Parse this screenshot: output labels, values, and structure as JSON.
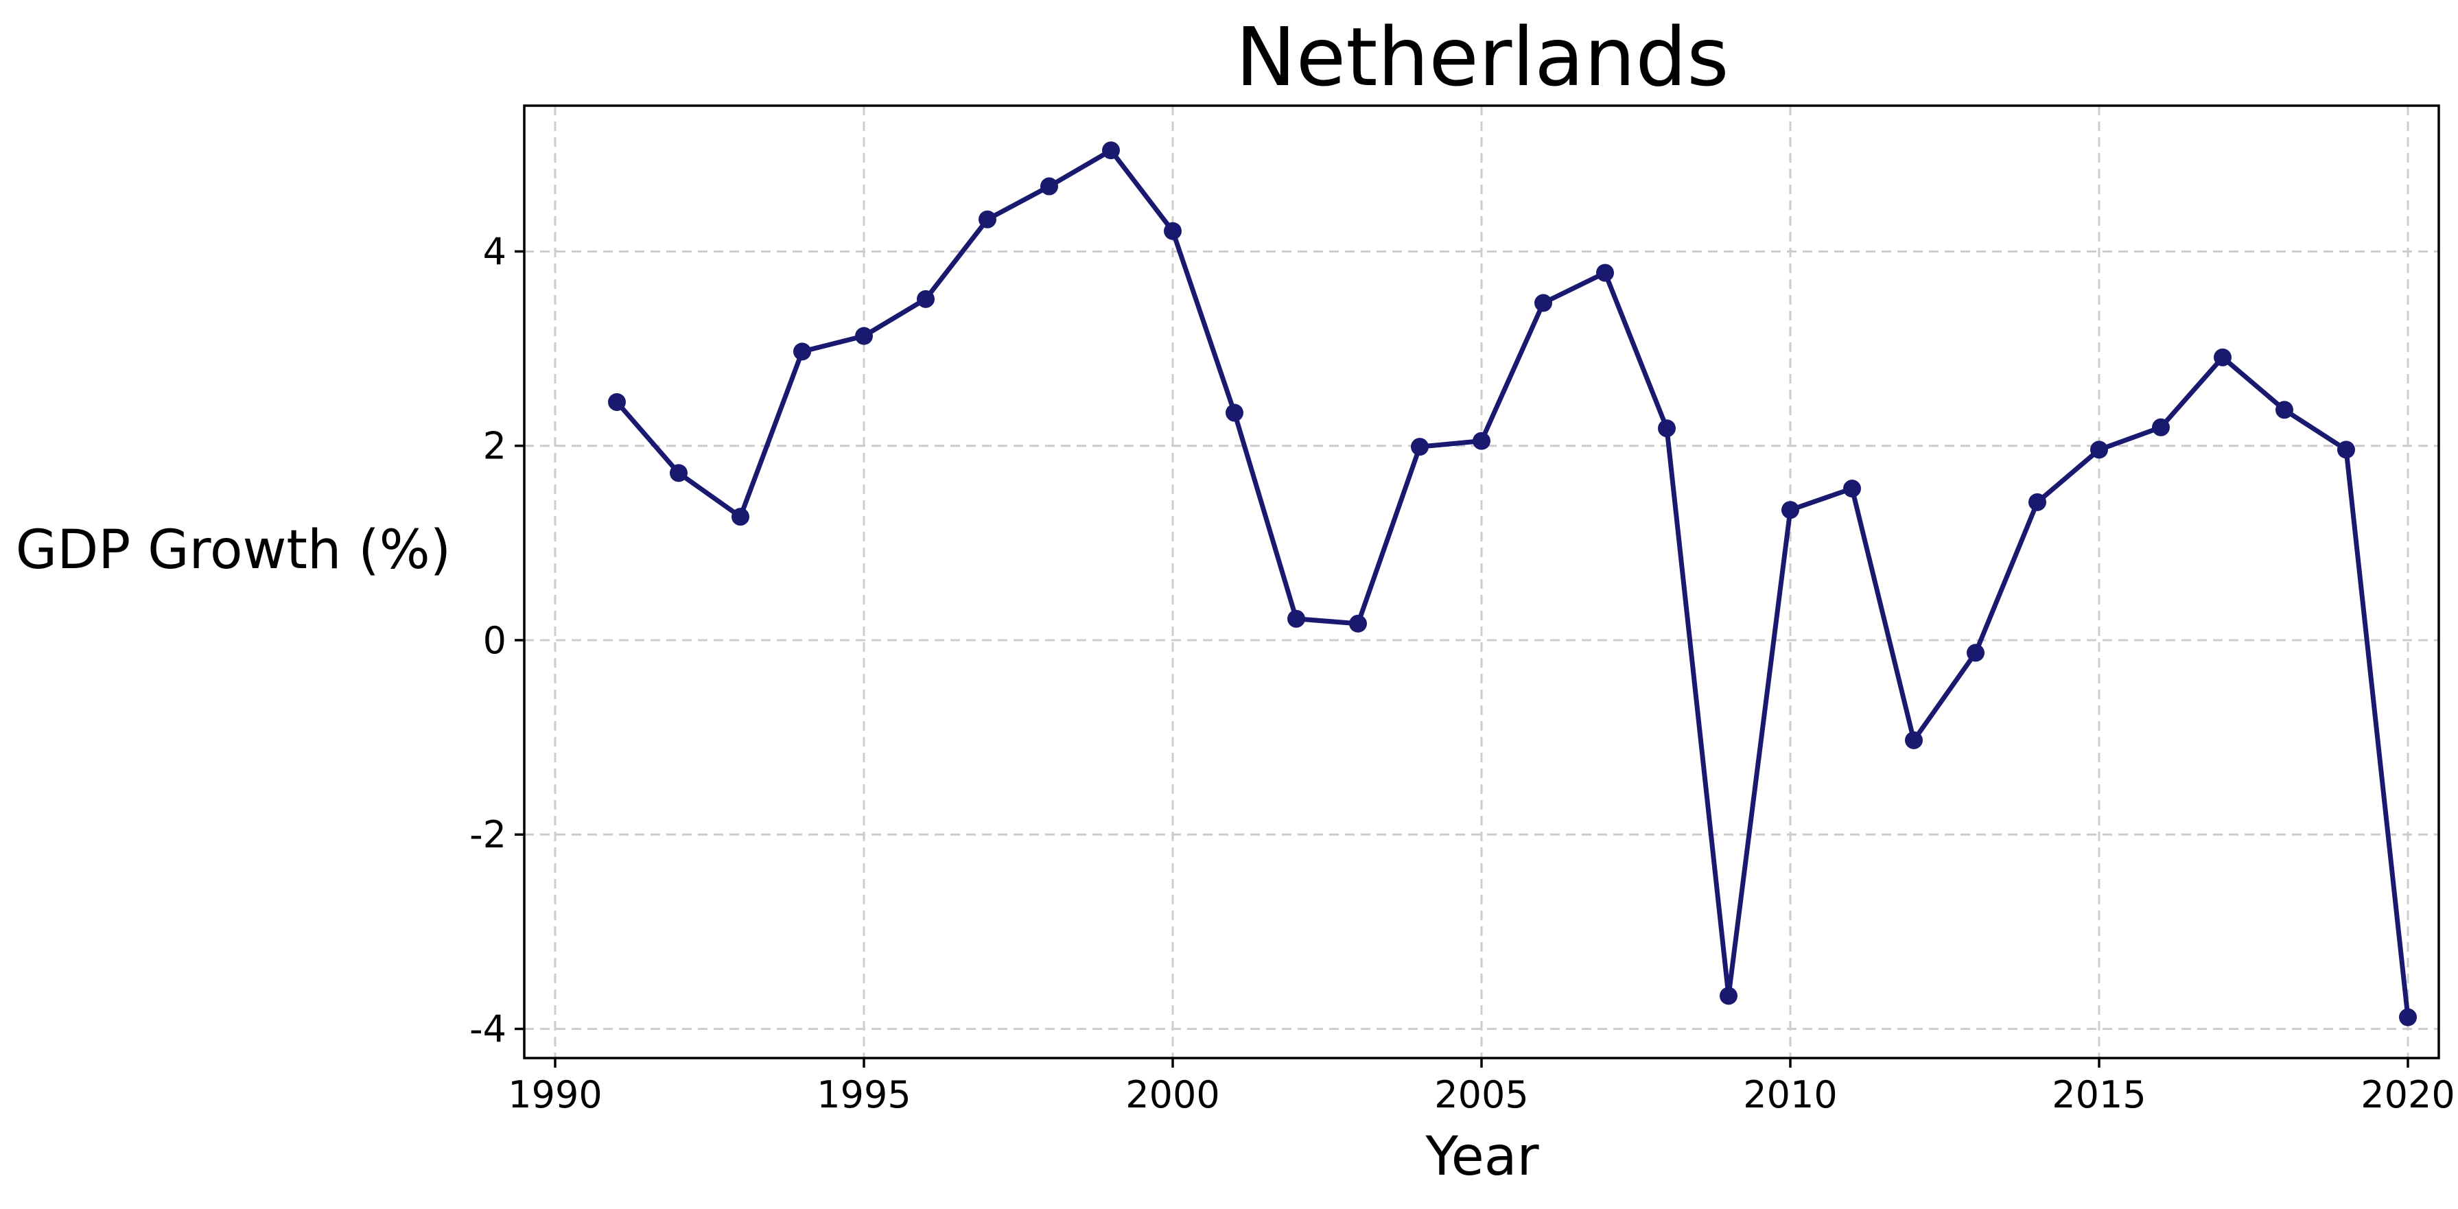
{
  "chart_data": {
    "type": "line",
    "title": "Netherlands",
    "xlabel": "Year",
    "ylabel": "GDP Growth (%)",
    "xlim": [
      1989.5,
      2020.5
    ],
    "ylim": [
      -4.3,
      5.5
    ],
    "xticks": [
      1990,
      1995,
      2000,
      2005,
      2010,
      2015,
      2020
    ],
    "yticks": [
      -4,
      -2,
      0,
      2,
      4
    ],
    "grid": true,
    "line_color": "#191970",
    "series": [
      {
        "x": [
          1991,
          1992,
          1993,
          1994,
          1995,
          1996,
          1997,
          1998,
          1999,
          2000,
          2001,
          2002,
          2003,
          2004,
          2005,
          2006,
          2007,
          2008,
          2009,
          2010,
          2011,
          2012,
          2013,
          2014,
          2015,
          2016,
          2017,
          2018,
          2019,
          2020
        ],
        "values": [
          2.45,
          1.72,
          1.27,
          2.97,
          3.13,
          3.51,
          4.33,
          4.67,
          5.04,
          4.21,
          2.34,
          0.22,
          0.17,
          1.99,
          2.05,
          3.47,
          3.78,
          2.18,
          -3.66,
          1.34,
          1.56,
          -1.03,
          -0.13,
          1.42,
          1.96,
          2.19,
          2.91,
          2.37,
          1.96,
          -3.88
        ]
      }
    ]
  }
}
